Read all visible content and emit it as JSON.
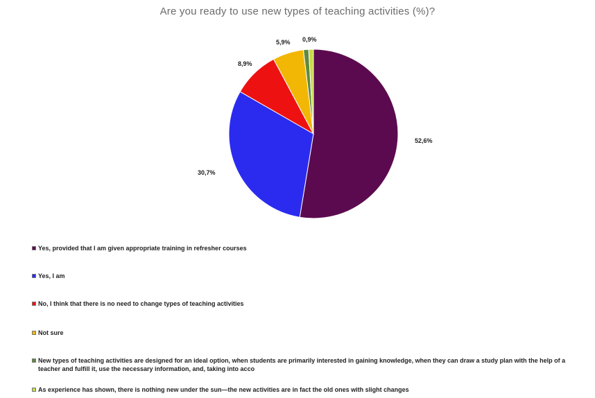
{
  "chart_data": {
    "type": "pie",
    "title": "Are you ready to use new types of teaching activities (%)?",
    "slices": [
      {
        "label": "Yes, provided that I am given appropriate training in refresher courses",
        "value": 52.6,
        "value_label": "52,6%",
        "color": "#5c0a4f"
      },
      {
        "label": "Yes, I am",
        "value": 30.7,
        "value_label": "30,7%",
        "color": "#2b2bf0"
      },
      {
        "label": "No, I think that there is no need to change types of teaching activities",
        "value": 8.9,
        "value_label": "8,9%",
        "color": "#ee1111"
      },
      {
        "label": "Not sure",
        "value": 5.9,
        "value_label": "5,9%",
        "color": "#f2b705"
      },
      {
        "label": "New types of teaching activities are designed for an ideal option, when students are primarily interested in gaining knowledge, when they can draw a study plan with the help of a teacher and fulfill it, use the necessary information, and, taking into acco",
        "value": 1.0,
        "value_label": "",
        "color": "#5e8a3c"
      },
      {
        "label": "As experience has shown, there is nothing new under the sun—the new activities are in fact the old ones with slight changes",
        "value": 0.9,
        "value_label": "0,9%",
        "color": "#c8d84a"
      }
    ],
    "legend_position": "bottom-left"
  }
}
